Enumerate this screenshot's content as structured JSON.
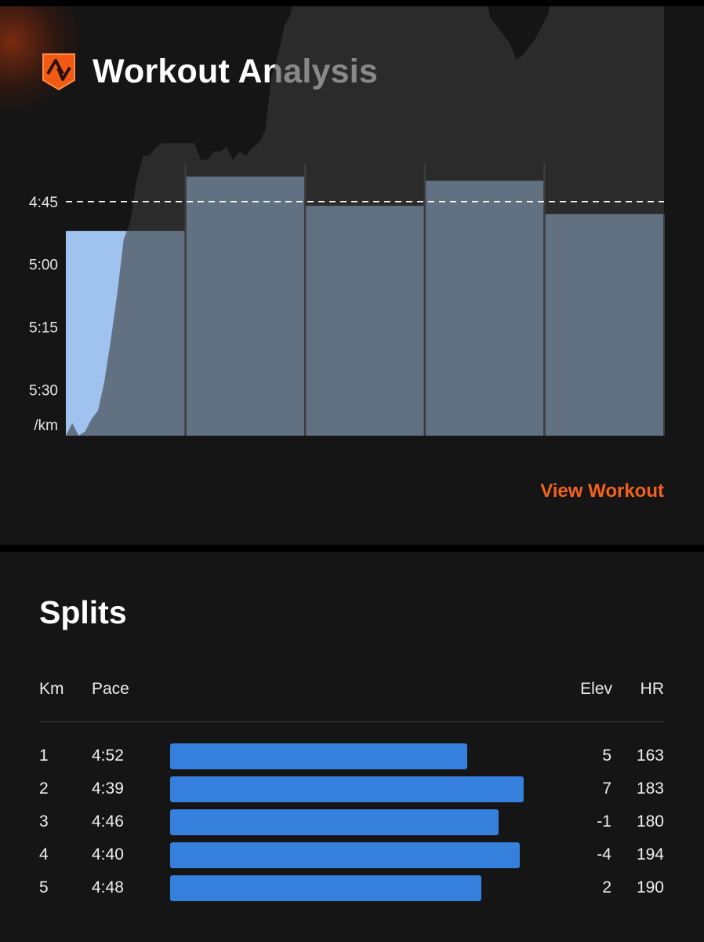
{
  "header": {
    "title": "Workout Analysis",
    "logo": "strava-shield-icon"
  },
  "colors": {
    "accent": "#f2621f",
    "bar": "#3580dc",
    "pace_fill": "#9fc3ee",
    "card": "#151515"
  },
  "chart_data": {
    "type": "area",
    "description_axis": "pace per km (mm:ss)",
    "y_tick_labels": [
      "4:45",
      "5:00",
      "5:15",
      "5:30",
      "/km"
    ],
    "y_ticks_seconds": [
      285,
      300,
      315,
      330
    ],
    "ylim_seconds": [
      270,
      341
    ],
    "target_pace_line": "4:45",
    "splits": [
      {
        "km": 1,
        "pace": "4:52"
      },
      {
        "km": 2,
        "pace": "4:39"
      },
      {
        "km": 3,
        "pace": "4:46"
      },
      {
        "km": 4,
        "pace": "4:40"
      },
      {
        "km": 5,
        "pace": "4:48"
      }
    ],
    "elevation_profile": [
      341,
      338,
      341,
      340,
      337,
      335,
      328,
      318,
      307,
      294,
      290,
      280,
      274,
      274,
      272,
      271,
      271,
      271,
      271,
      271,
      271,
      275,
      275,
      273,
      273,
      272,
      275,
      273,
      274,
      272,
      271,
      268,
      255,
      250,
      243,
      240,
      226,
      212,
      204,
      197,
      193,
      190,
      188,
      190,
      186,
      182,
      183,
      185,
      184,
      182,
      180,
      179,
      181,
      181,
      180,
      180,
      182,
      183,
      184,
      186,
      188,
      196,
      209,
      218,
      231,
      234,
      241,
      243,
      245,
      247,
      251,
      250,
      248,
      246,
      243,
      240,
      234,
      232,
      230,
      228,
      227,
      226,
      227,
      228,
      226,
      223,
      219,
      217,
      214,
      213,
      212,
      212,
      212,
      212
    ]
  },
  "actions": {
    "view_workout": "View Workout"
  },
  "splits": {
    "title": "Splits",
    "headers": {
      "km": "Km",
      "pace": "Pace",
      "elev": "Elev",
      "hr": "HR"
    },
    "rows": [
      {
        "km": "1",
        "pace": "4:52",
        "elev": "5",
        "hr": "163",
        "relative_speed": 0.84
      },
      {
        "km": "2",
        "pace": "4:39",
        "elev": "7",
        "hr": "183",
        "relative_speed": 1.0
      },
      {
        "km": "3",
        "pace": "4:46",
        "elev": "-1",
        "hr": "180",
        "relative_speed": 0.93
      },
      {
        "km": "4",
        "pace": "4:40",
        "elev": "-4",
        "hr": "194",
        "relative_speed": 0.99
      },
      {
        "km": "5",
        "pace": "4:48",
        "elev": "2",
        "hr": "190",
        "relative_speed": 0.88
      }
    ]
  }
}
